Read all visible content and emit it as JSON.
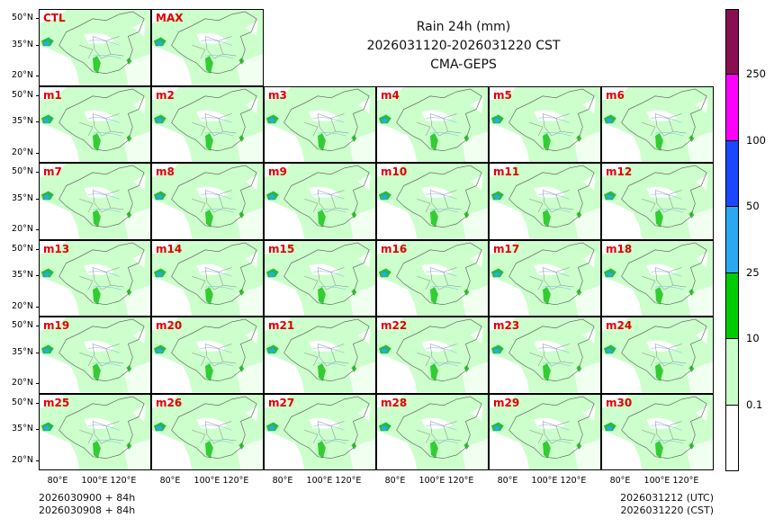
{
  "title": {
    "line1": "Rain 24h (mm)",
    "line2": "2026031120-2026031220 CST",
    "line3": "CMA-GEPS"
  },
  "panels": [
    "CTL",
    "MAX",
    "m1",
    "m2",
    "m3",
    "m4",
    "m5",
    "m6",
    "m7",
    "m8",
    "m9",
    "m10",
    "m11",
    "m12",
    "m13",
    "m14",
    "m15",
    "m16",
    "m17",
    "m18",
    "m19",
    "m20",
    "m21",
    "m22",
    "m23",
    "m24",
    "m25",
    "m26",
    "m27",
    "m28",
    "m29",
    "m30"
  ],
  "lat_ticks": [
    "50°N",
    "35°N",
    "20°N"
  ],
  "lon_ticks": [
    "80°E",
    "100°E",
    "120°E"
  ],
  "footer": {
    "left1": "2026030900 + 84h",
    "left2": "2026030908 + 84h",
    "right1": "2026031212 (UTC)",
    "right2": "2026031220 (CST)"
  },
  "colorbar": {
    "levels": [
      "0.1",
      "10",
      "25",
      "50",
      "100",
      "250"
    ],
    "colors": [
      "#ffffff",
      "#c8ffc8",
      "#00cc00",
      "#2aa9f0",
      "#1a47ff",
      "#ff00ff",
      "#8a0e52"
    ]
  }
}
